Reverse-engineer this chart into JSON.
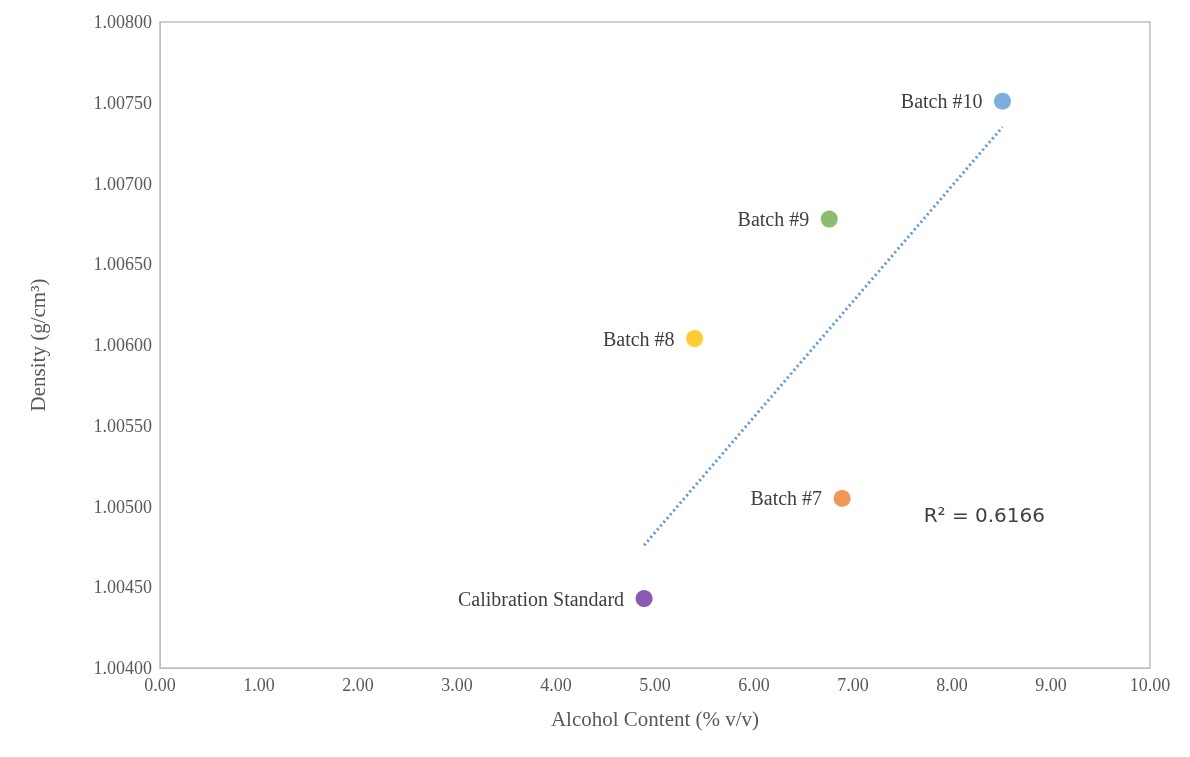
{
  "chart_data": {
    "type": "scatter",
    "xlabel": "Alcohol Content (% v/v)",
    "ylabel": "Density (g/cm³)",
    "x": [
      4.89,
      5.4,
      6.76,
      8.51,
      6.89
    ],
    "series": [
      {
        "type": "scatter",
        "values": [
          1.00443,
          1.00604,
          1.00678,
          1.00751,
          1.00505
        ],
        "colors": [
          "#7030a0",
          "#ffc000",
          "#70ad47",
          "#5b9bd5",
          "#ed7d31"
        ],
        "marker": "circle"
      },
      {
        "type": "line",
        "x": [
          4.89,
          8.51
        ],
        "values": [
          1.00476,
          1.00735
        ],
        "color": "#5b9bd5",
        "line_style": "dotted",
        "marker": "none"
      }
    ],
    "xlim": [
      0,
      10
    ],
    "xticks": [
      {
        "value": 0,
        "label": "0.00"
      },
      {
        "value": 1,
        "label": "1.00"
      },
      {
        "value": 2,
        "label": "2.00"
      },
      {
        "value": 3,
        "label": "3.00"
      },
      {
        "value": 4,
        "label": "4.00"
      },
      {
        "value": 5,
        "label": "5.00"
      },
      {
        "value": 6,
        "label": "6.00"
      },
      {
        "value": 7,
        "label": "7.00"
      },
      {
        "value": 8,
        "label": "8.00"
      },
      {
        "value": 9,
        "label": "9.00"
      },
      {
        "value": 10,
        "label": "10.00"
      }
    ],
    "ylim": [
      1.004,
      1.008
    ],
    "yticks": [
      {
        "value": 1.004,
        "label": "1.00400"
      },
      {
        "value": 1.0045,
        "label": "1.00450"
      },
      {
        "value": 1.005,
        "label": "1.00500"
      },
      {
        "value": 1.0055,
        "label": "1.00550"
      },
      {
        "value": 1.006,
        "label": "1.00600"
      },
      {
        "value": 1.0065,
        "label": "1.00650"
      },
      {
        "value": 1.007,
        "label": "1.00700"
      },
      {
        "value": 1.0075,
        "label": "1.00750"
      },
      {
        "value": 1.008,
        "label": "1.00800"
      }
    ],
    "grid": false,
    "annotations": [
      {
        "text": "Calibration Standard",
        "x": 4.89,
        "y": 1.00443
      },
      {
        "text": "Batch #8",
        "x": 5.4,
        "y": 1.00604
      },
      {
        "text": "Batch #9",
        "x": 6.76,
        "y": 1.00678
      },
      {
        "text": "Batch #10",
        "x": 8.51,
        "y": 1.00751
      },
      {
        "text": "Batch #7",
        "x": 6.89,
        "y": 1.00505
      },
      "R² = 0.6166"
    ]
  }
}
